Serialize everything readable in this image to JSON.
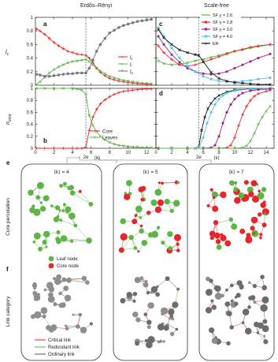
{
  "headers": {
    "left": "Erdős–Rényi",
    "right": "Scale-free"
  },
  "panel_letters": {
    "a": "a",
    "b": "b",
    "c": "c",
    "d": "d",
    "e": "e",
    "f": "f"
  },
  "colors": {
    "red": "#e8262a",
    "green": "#5cb546",
    "gray": "#6e6e6e",
    "purple": "#9b1f8c",
    "cyan": "#4fc7e6",
    "black": "#111111",
    "node_gray": "#6c6c6c"
  },
  "chart_data": [
    {
      "id": "a",
      "type": "line",
      "ylabel": "l",
      "xlim": [
        0,
        13
      ],
      "ylim": [
        0,
        1
      ],
      "xticks": [
        0,
        2,
        4,
        6,
        8,
        10,
        12
      ],
      "yticks": [
        0,
        0.2,
        0.4,
        0.6,
        0.8,
        1
      ],
      "yticklabels": [
        "0",
        "0.2",
        "0.4",
        "0.6",
        "0.8",
        "1"
      ],
      "annotations": {
        "critical_x": 5.44
      },
      "legend": {
        "position": "center-right",
        "entries": [
          "lc",
          "lr",
          "lo"
        ]
      },
      "series": [
        {
          "name": "lc",
          "color": "red",
          "x": [
            0.1,
            0.5,
            1,
            1.5,
            2,
            2.5,
            3,
            3.5,
            4,
            4.5,
            5,
            5.44,
            5.8,
            6.2,
            6.6,
            7,
            7.5,
            8,
            8.5,
            9,
            9.5,
            10,
            10.5,
            11,
            11.5,
            12,
            12.5
          ],
          "y": [
            0.83,
            0.8,
            0.75,
            0.69,
            0.63,
            0.58,
            0.54,
            0.5,
            0.48,
            0.46,
            0.45,
            0.44,
            0.4,
            0.33,
            0.25,
            0.19,
            0.14,
            0.1,
            0.08,
            0.06,
            0.05,
            0.04,
            0.03,
            0.02,
            0.02,
            0.01,
            0.01
          ]
        },
        {
          "name": "lr",
          "color": "green",
          "x": [
            0.1,
            0.5,
            1,
            1.5,
            2,
            2.5,
            3,
            3.5,
            4,
            4.5,
            5,
            5.44,
            5.8,
            6.2,
            6.6,
            7,
            7.5,
            8,
            8.5,
            9,
            9.5,
            10,
            10.5,
            11,
            11.5,
            12,
            12.5
          ],
          "y": [
            0.01,
            0.05,
            0.12,
            0.18,
            0.23,
            0.27,
            0.3,
            0.33,
            0.35,
            0.36,
            0.37,
            0.38,
            0.35,
            0.3,
            0.25,
            0.21,
            0.17,
            0.13,
            0.11,
            0.09,
            0.07,
            0.06,
            0.05,
            0.04,
            0.03,
            0.03,
            0.02
          ]
        },
        {
          "name": "lo",
          "color": "gray",
          "x": [
            0.1,
            0.5,
            1,
            1.5,
            2,
            2.5,
            3,
            3.5,
            4,
            4.5,
            5,
            5.44,
            5.8,
            6.2,
            6.6,
            7,
            7.5,
            8,
            8.5,
            9,
            9.5,
            10,
            10.5,
            11,
            11.5,
            12,
            12.5
          ],
          "y": [
            0.16,
            0.15,
            0.13,
            0.13,
            0.14,
            0.15,
            0.16,
            0.17,
            0.17,
            0.18,
            0.18,
            0.18,
            0.25,
            0.37,
            0.5,
            0.6,
            0.69,
            0.77,
            0.81,
            0.85,
            0.88,
            0.9,
            0.92,
            0.94,
            0.95,
            0.96,
            0.97
          ]
        }
      ]
    },
    {
      "id": "b",
      "type": "line",
      "ylabel": "n",
      "xlabel": "⟨k⟩",
      "critical_label": "2e",
      "xlim": [
        0,
        13
      ],
      "ylim": [
        0,
        1
      ],
      "xticks": [
        0,
        2,
        4,
        6,
        8,
        10,
        12
      ],
      "yticks": [
        0,
        0.2,
        0.4,
        0.6,
        0.8,
        1
      ],
      "yticklabels": [
        "0",
        "0.2",
        "0.4",
        "0.6",
        "0.8",
        "1"
      ],
      "annotations": {
        "critical_x": 5.44
      },
      "legend": {
        "position": "bottom-right",
        "entries": [
          "Core",
          "Leaves"
        ]
      },
      "series": [
        {
          "name": "Core",
          "color": "red",
          "x": [
            0.1,
            1,
            2,
            3,
            4,
            4.5,
            5,
            5.44,
            5.8,
            6.2,
            6.6,
            7,
            7.5,
            8,
            8.5,
            9,
            9.5,
            10,
            10.5,
            11,
            11.5,
            12,
            12.5
          ],
          "y": [
            0,
            0,
            0,
            0,
            0,
            0,
            0,
            0.02,
            0.3,
            0.52,
            0.65,
            0.74,
            0.81,
            0.86,
            0.9,
            0.93,
            0.95,
            0.96,
            0.97,
            0.98,
            0.985,
            0.99,
            0.99
          ]
        },
        {
          "name": "Leaves",
          "color": "green",
          "x": [
            0.1,
            1,
            2,
            3,
            4,
            4.5,
            5,
            5.44,
            5.8,
            6.2,
            6.6,
            7,
            7.5,
            8,
            8.5,
            9,
            9.5,
            10,
            10.5,
            11,
            11.5,
            12,
            12.5
          ],
          "y": [
            1,
            1,
            1,
            1,
            1,
            0.99,
            0.97,
            0.9,
            0.55,
            0.38,
            0.28,
            0.2,
            0.14,
            0.1,
            0.07,
            0.05,
            0.04,
            0.03,
            0.02,
            0.02,
            0.01,
            0.01,
            0.01
          ]
        }
      ]
    },
    {
      "id": "c",
      "type": "line",
      "xlim": [
        0,
        15
      ],
      "ylim": [
        0,
        1
      ],
      "xticks": [
        0,
        2,
        4,
        6,
        8,
        10,
        12,
        14
      ],
      "legend": {
        "position": "top-right",
        "entries": [
          "SF γ = 2.6",
          "SF γ = 2.8",
          "SF γ = 3.0",
          "SF γ = 4.0",
          "ER"
        ]
      },
      "series": [
        {
          "name": "SF γ = 2.6",
          "color": "green",
          "solid_y": [
            0.3,
            0.32,
            0.35,
            0.38,
            0.41,
            0.44,
            0.47,
            0.5,
            0.52,
            0.55,
            0.57,
            0.58,
            0.59,
            0.6,
            0.6
          ],
          "x": [
            0.3,
            1,
            2,
            3,
            4,
            5,
            6,
            7,
            8,
            9,
            10,
            11,
            12,
            13,
            14.5
          ],
          "y": [
            0.36,
            0.32,
            0.3,
            0.31,
            0.33,
            0.36,
            0.38,
            0.41,
            0.44,
            0.47,
            0.5,
            0.52,
            0.55,
            0.57,
            0.6
          ]
        },
        {
          "name": "SF γ = 2.8",
          "color": "red",
          "x": [
            0.3,
            1,
            2,
            3,
            4,
            5,
            6,
            7,
            8,
            9,
            10,
            11,
            12,
            13,
            14.5
          ],
          "y": [
            0.58,
            0.48,
            0.38,
            0.3,
            0.28,
            0.3,
            0.34,
            0.38,
            0.42,
            0.46,
            0.5,
            0.53,
            0.56,
            0.58,
            0.6
          ]
        },
        {
          "name": "SF γ = 3.0",
          "color": "purple",
          "x": [
            0.3,
            1,
            2,
            3,
            4,
            5,
            6,
            7,
            8,
            9,
            10,
            11,
            12,
            13,
            14.5
          ],
          "y": [
            0.72,
            0.6,
            0.45,
            0.34,
            0.25,
            0.2,
            0.17,
            0.16,
            0.17,
            0.2,
            0.25,
            0.3,
            0.35,
            0.4,
            0.46
          ]
        },
        {
          "name": "SF γ = 4.0",
          "color": "cyan",
          "x": [
            0.3,
            1,
            2,
            3,
            4,
            5,
            6,
            7,
            8,
            9,
            10,
            11,
            12,
            13,
            14.5
          ],
          "y": [
            0.85,
            0.72,
            0.55,
            0.4,
            0.28,
            0.2,
            0.13,
            0.09,
            0.06,
            0.05,
            0.05,
            0.06,
            0.07,
            0.09,
            0.11
          ]
        },
        {
          "name": "ER",
          "color": "black",
          "x": [
            0.3,
            1,
            2,
            3,
            4,
            5,
            5.44,
            6,
            7,
            8,
            9,
            10,
            11,
            12,
            13,
            14.5
          ],
          "y": [
            0.82,
            0.7,
            0.6,
            0.52,
            0.48,
            0.45,
            0.44,
            0.35,
            0.19,
            0.1,
            0.06,
            0.04,
            0.03,
            0.02,
            0.01,
            0.01
          ]
        }
      ]
    },
    {
      "id": "d",
      "type": "line",
      "xlabel": "⟨k⟩",
      "critical_label": "2e",
      "xlim": [
        0,
        15
      ],
      "ylim": [
        0,
        1
      ],
      "xticks": [
        0,
        2,
        4,
        6,
        8,
        10,
        12,
        14
      ],
      "xticklabels": [
        "0",
        "2",
        "4",
        "6",
        "8",
        "10",
        "12",
        "14"
      ],
      "annotations": {
        "critical_x": 5.44
      },
      "series": [
        {
          "name": "ER",
          "color": "black",
          "x": [
            0.3,
            2,
            4,
            5,
            5.44,
            5.8,
            6.2,
            6.6,
            7,
            7.5,
            8,
            9,
            10,
            12,
            14.5
          ],
          "y": [
            0,
            0,
            0,
            0,
            0.02,
            0.3,
            0.52,
            0.66,
            0.75,
            0.83,
            0.88,
            0.94,
            0.97,
            0.99,
            1
          ]
        },
        {
          "name": "SF γ = 4.0",
          "color": "cyan",
          "x": [
            0.3,
            2,
            4,
            5,
            5.5,
            6,
            6.5,
            7,
            7.5,
            8,
            8.5,
            9,
            10,
            12,
            14.5
          ],
          "y": [
            0,
            0,
            0,
            0,
            0.02,
            0.18,
            0.42,
            0.6,
            0.73,
            0.82,
            0.88,
            0.92,
            0.96,
            0.99,
            1
          ]
        },
        {
          "name": "SF γ = 3.0",
          "color": "purple",
          "x": [
            0.3,
            4,
            6,
            7,
            7.5,
            8,
            8.5,
            9,
            9.5,
            10,
            10.5,
            11,
            12,
            13,
            14.5
          ],
          "y": [
            0,
            0,
            0,
            0.01,
            0.05,
            0.2,
            0.42,
            0.6,
            0.73,
            0.82,
            0.88,
            0.92,
            0.96,
            0.98,
            0.99
          ]
        },
        {
          "name": "SF γ = 2.8",
          "color": "red",
          "x": [
            0.3,
            4,
            6,
            8,
            9,
            9.5,
            10,
            10.5,
            11,
            11.5,
            12,
            12.5,
            13,
            14,
            14.5
          ],
          "y": [
            0,
            0,
            0,
            0,
            0.01,
            0.05,
            0.18,
            0.38,
            0.56,
            0.7,
            0.8,
            0.87,
            0.91,
            0.95,
            0.97
          ]
        },
        {
          "name": "SF γ = 2.6",
          "color": "green",
          "x": [
            0.3,
            4,
            8,
            10,
            11,
            11.5,
            12,
            12.5,
            13,
            13.5,
            14,
            14.5
          ],
          "y": [
            0,
            0,
            0,
            0,
            0.01,
            0.04,
            0.12,
            0.25,
            0.4,
            0.52,
            0.62,
            0.7
          ]
        }
      ]
    }
  ],
  "network_panels": {
    "row_e": {
      "label": "Core percolation",
      "legend": {
        "leaf": "Leaf node",
        "core": "Core node"
      },
      "columns": [
        "⟨k⟩ = 4",
        "⟨k⟩ = 5",
        "⟨k⟩ = 7"
      ]
    },
    "row_f": {
      "label": "Link category",
      "legend": {
        "critical": "Critical link",
        "redundant": "Redundant link",
        "ordinary": "Ordinary link"
      }
    }
  }
}
